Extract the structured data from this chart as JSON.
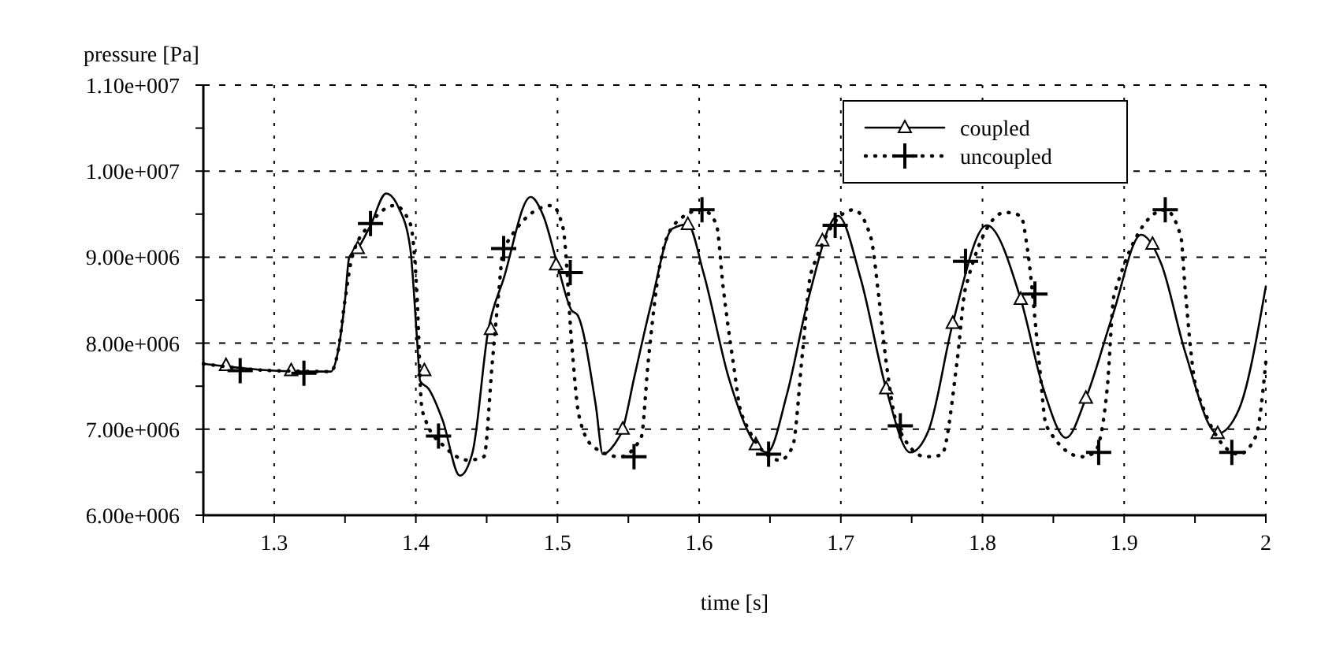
{
  "chart_data": {
    "type": "line",
    "xlabel": "time [s]",
    "ylabel": "pressure [Pa]",
    "xlim": [
      1.25,
      2
    ],
    "ylim": [
      6000000,
      11000000
    ],
    "xticks": [
      {
        "value": 1.25,
        "label": null
      },
      1.3,
      {
        "value": 1.35,
        "label": null
      },
      1.4,
      {
        "value": 1.45,
        "label": null
      },
      1.5,
      {
        "value": 1.55,
        "label": null
      },
      1.6,
      {
        "value": 1.65,
        "label": null
      },
      1.7,
      {
        "value": 1.75,
        "label": null
      },
      1.8,
      {
        "value": 1.85,
        "label": null
      },
      1.9,
      {
        "value": 1.95,
        "label": null
      },
      2
    ],
    "yticks": [
      {
        "value": 6000000,
        "label": "6.00e+006"
      },
      {
        "value": 6500000,
        "label": null
      },
      {
        "value": 7000000,
        "label": "7.00e+006"
      },
      {
        "value": 7500000,
        "label": null
      },
      {
        "value": 8000000,
        "label": "8.00e+006"
      },
      {
        "value": 8500000,
        "label": null
      },
      {
        "value": 9000000,
        "label": "9.00e+006"
      },
      {
        "value": 9500000,
        "label": null
      },
      {
        "value": 10000000,
        "label": "1.00e+007"
      },
      {
        "value": 10500000,
        "label": null
      },
      {
        "value": 11000000,
        "label": "1.10e+007"
      }
    ],
    "grid": true,
    "legend": "top right",
    "series": [
      {
        "name": "coupled",
        "color": "#000000",
        "line_style": "solid",
        "marker": "none",
        "x": [
          1.25,
          1.3,
          1.32,
          1.34,
          1.345,
          1.35,
          1.353,
          1.359,
          1.368,
          1.379,
          1.388,
          1.396,
          1.401,
          1.403,
          1.409,
          1.419,
          1.431,
          1.44,
          1.451,
          1.462,
          1.481,
          1.49,
          1.5,
          1.51,
          1.514,
          1.527,
          1.532,
          1.54,
          1.546,
          1.554,
          1.566,
          1.581,
          1.592,
          1.603,
          1.621,
          1.64,
          1.648,
          1.662,
          1.677,
          1.698,
          1.714,
          1.732,
          1.749,
          1.762,
          1.779,
          1.803,
          1.827,
          1.843,
          1.859,
          1.873,
          1.892,
          1.912,
          1.926,
          1.943,
          1.966,
          1.981,
          2
        ],
        "values": [
          7760000,
          7680000,
          7670000,
          7670000,
          7900000,
          8500000,
          9000000,
          9100000,
          9370000,
          9740000,
          9570000,
          9110000,
          8010000,
          7560000,
          7470000,
          7100000,
          6460000,
          6730000,
          8140000,
          8750000,
          9700000,
          9480000,
          8910000,
          8380000,
          8330000,
          7280000,
          6710000,
          6820000,
          7000000,
          7590000,
          8450000,
          9330000,
          9380000,
          8820000,
          7590000,
          6820000,
          6730000,
          7410000,
          8510000,
          9480000,
          8750000,
          7470000,
          6730000,
          6990000,
          8230000,
          9370000,
          8510000,
          7470000,
          6900000,
          7360000,
          8330000,
          9260000,
          8930000,
          7900000,
          6950000,
          7230000,
          8660000
        ]
      },
      {
        "type": "scatter",
        "color": "#000000",
        "marker": "triangle",
        "x": [
          1.266,
          1.312,
          1.359,
          1.406,
          1.453,
          1.499,
          1.546,
          1.592,
          1.64,
          1.687,
          1.732,
          1.779,
          1.827,
          1.873,
          1.92,
          1.966
        ],
        "values": [
          7740000,
          7680000,
          9100000,
          7680000,
          8160000,
          8910000,
          7000000,
          9380000,
          6820000,
          9190000,
          7470000,
          8230000,
          8510000,
          7360000,
          9150000,
          6950000
        ]
      },
      {
        "name": "uncoupled",
        "color": "#000000",
        "line_style": "dotted",
        "marker": "none",
        "x": [
          1.25,
          1.3,
          1.34,
          1.345,
          1.35,
          1.355,
          1.368,
          1.385,
          1.396,
          1.401,
          1.404,
          1.407,
          1.42,
          1.437,
          1.448,
          1.454,
          1.458,
          1.462,
          1.496,
          1.504,
          1.51,
          1.515,
          1.525,
          1.544,
          1.559,
          1.564,
          1.572,
          1.583,
          1.602,
          1.612,
          1.617,
          1.624,
          1.63,
          1.657,
          1.666,
          1.673,
          1.679,
          1.709,
          1.721,
          1.727,
          1.732,
          1.74,
          1.76,
          1.771,
          1.782,
          1.788,
          1.816,
          1.827,
          1.832,
          1.84,
          1.845,
          1.87,
          1.879,
          1.888,
          1.893,
          1.929,
          1.94,
          1.943,
          1.951,
          1.981,
          1.993,
          2
        ],
        "values": [
          7760000,
          7680000,
          7670000,
          7900000,
          8500000,
          9000000,
          9390000,
          9600000,
          9390000,
          8500000,
          7280000,
          7100000,
          6800000,
          6640000,
          6680000,
          7780000,
          8500000,
          9100000,
          9600000,
          9330000,
          8000000,
          7170000,
          6800000,
          6680000,
          6900000,
          7780000,
          8880000,
          9390000,
          9550000,
          9390000,
          8640000,
          7780000,
          7170000,
          6640000,
          6800000,
          7900000,
          8820000,
          9550000,
          9240000,
          8510000,
          7780000,
          7040000,
          6680000,
          6700000,
          7780000,
          8640000,
          9520000,
          9480000,
          9060000,
          7780000,
          7040000,
          6680000,
          6730000,
          7470000,
          8570000,
          9550000,
          9240000,
          8640000,
          7470000,
          6710000,
          6920000,
          7780000
        ]
      },
      {
        "type": "scatter",
        "color": "#000000",
        "marker": "cross",
        "x": [
          1.276,
          1.321,
          1.368,
          1.416,
          1.462,
          1.509,
          1.554,
          1.602,
          1.649,
          1.696,
          1.742,
          1.788,
          1.837,
          1.882,
          1.929,
          1.976
        ],
        "values": [
          7680000,
          7650000,
          9390000,
          6920000,
          9100000,
          8820000,
          6680000,
          9550000,
          6710000,
          9370000,
          7040000,
          8950000,
          8570000,
          6730000,
          9550000,
          6730000
        ]
      }
    ]
  }
}
